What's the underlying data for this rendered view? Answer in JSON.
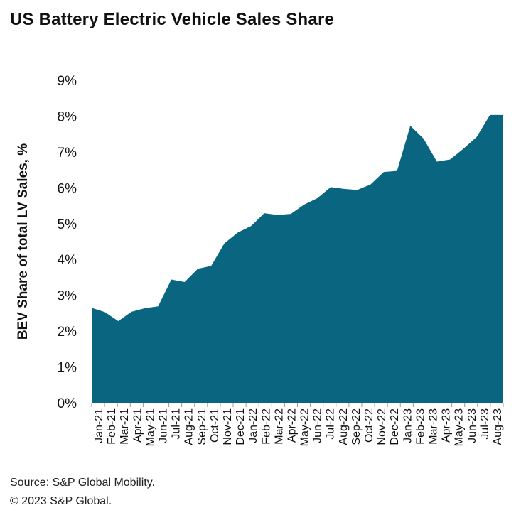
{
  "title": "US Battery Electric Vehicle Sales Share",
  "footer": {
    "source": "Source: S&P Global Mobility.",
    "copyright": "© 2023 S&P Global."
  },
  "colors": {
    "area": "#0a6680"
  },
  "chart_data": {
    "type": "area",
    "title": "US Battery Electric Vehicle Sales Share",
    "xlabel": "",
    "ylabel": "BEV Share of total LV Sales, %",
    "ylim": [
      0,
      9
    ],
    "yticks": [
      "0%",
      "1%",
      "2%",
      "3%",
      "4%",
      "5%",
      "6%",
      "7%",
      "8%",
      "9%"
    ],
    "grid": false,
    "categories": [
      "Jan-21",
      "Feb-21",
      "Mar-21",
      "Apr-21",
      "May-21",
      "Jun-21",
      "Jul-21",
      "Aug-21",
      "Sep-21",
      "Oct-21",
      "Nov-21",
      "Dec-21",
      "Jan-22",
      "Feb-22",
      "Mar-22",
      "Apr-22",
      "May-22",
      "Jun-22",
      "Jul-22",
      "Aug-22",
      "Sep-22",
      "Oct-22",
      "Nov-22",
      "Dec-22",
      "Jan-23",
      "Feb-23",
      "Mar-23",
      "Apr-23",
      "May-23",
      "Jun-23",
      "Jul-23",
      "Aug-23"
    ],
    "values": [
      2.65,
      2.53,
      2.28,
      2.54,
      2.64,
      2.69,
      3.44,
      3.37,
      3.74,
      3.82,
      4.45,
      4.75,
      4.93,
      5.29,
      5.24,
      5.27,
      5.53,
      5.71,
      6.02,
      5.97,
      5.94,
      6.09,
      6.44,
      6.47,
      7.73,
      7.37,
      6.73,
      6.79,
      7.09,
      7.42,
      8.03,
      8.03
    ]
  }
}
